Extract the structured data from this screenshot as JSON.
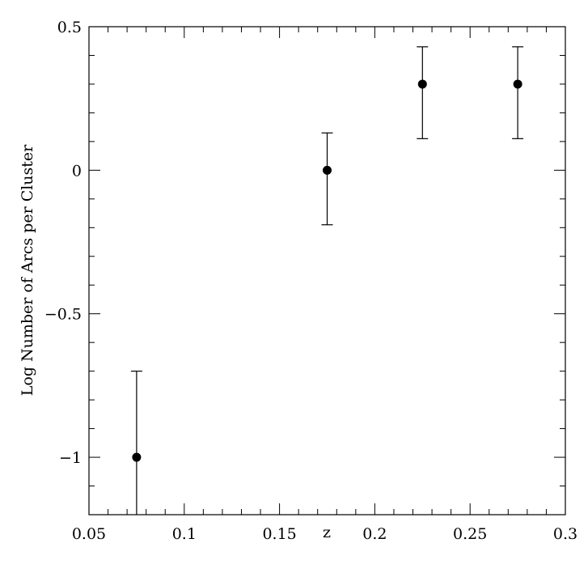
{
  "chart_data": {
    "type": "scatter",
    "title": "",
    "xlabel": "z",
    "ylabel": "Log Number of Arcs per Cluster",
    "xlim": [
      0.05,
      0.3
    ],
    "ylim": [
      -1.2,
      0.5
    ],
    "x_ticks": [
      0.05,
      0.1,
      0.15,
      0.2,
      0.25,
      0.3
    ],
    "x_tick_labels": [
      "0.05",
      "0.1",
      "0.15",
      "0.2",
      "0.25",
      "0.3"
    ],
    "x_minor_step": 0.01,
    "y_ticks": [
      -1,
      -0.5,
      0,
      0.5
    ],
    "y_tick_labels": [
      "−1",
      "−0.5",
      "0",
      "0.5"
    ],
    "y_minor_step": 0.1,
    "grid": false,
    "marker_color": "#000000",
    "series": [
      {
        "points": [
          {
            "x": 0.075,
            "y": -1.0,
            "y_low": -1.2,
            "y_high": -0.7
          },
          {
            "x": 0.175,
            "y": 0.0,
            "y_low": -0.19,
            "y_high": 0.13
          },
          {
            "x": 0.225,
            "y": 0.3,
            "y_low": 0.11,
            "y_high": 0.43
          },
          {
            "x": 0.275,
            "y": 0.3,
            "y_low": 0.11,
            "y_high": 0.43
          }
        ]
      }
    ]
  }
}
